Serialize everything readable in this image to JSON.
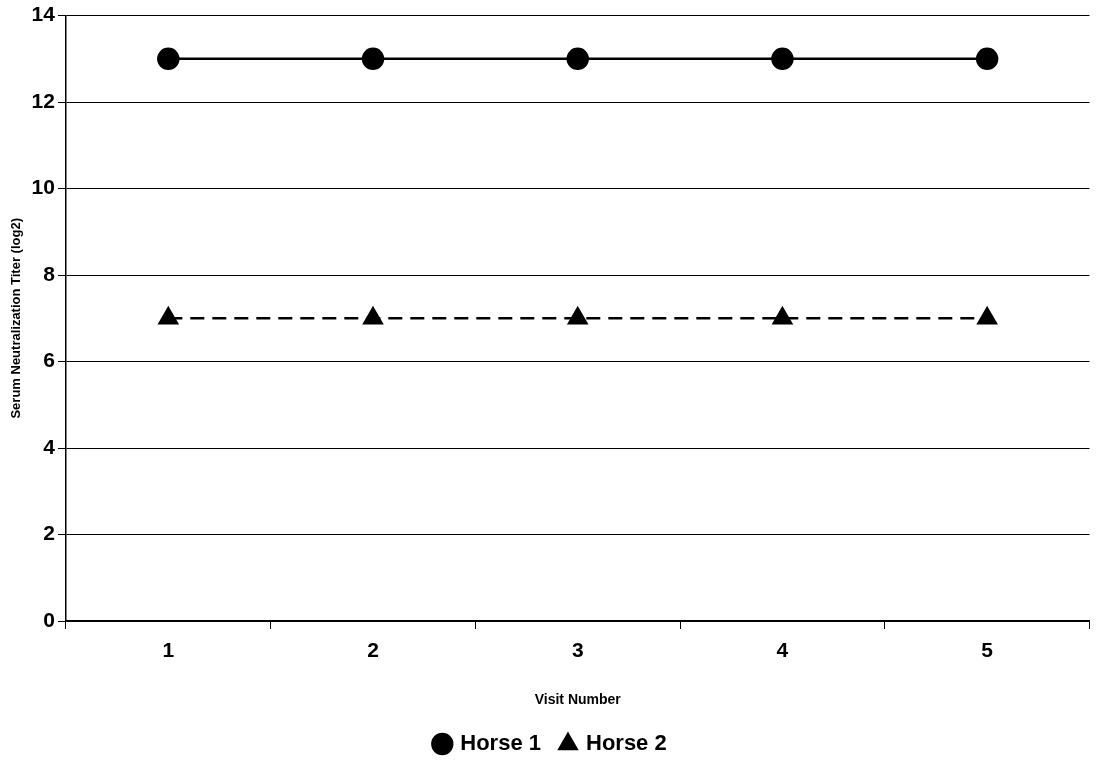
{
  "chart_data": {
    "type": "line",
    "xlabel": "Visit Number",
    "ylabel": "Serum Neutralization Titer (log2)",
    "categories": [
      "1",
      "2",
      "3",
      "4",
      "5"
    ],
    "series": [
      {
        "name": "Horse 1",
        "color": "#000000",
        "values": [
          13,
          13,
          13,
          13,
          13
        ],
        "marker": "circle",
        "line_style": "solid"
      },
      {
        "name": "Horse 2",
        "color": "#000000",
        "values": [
          7,
          7,
          7,
          7,
          7
        ],
        "marker": "triangle",
        "line_style": "dashed"
      }
    ],
    "ylim": [
      0,
      14
    ],
    "yticks": [
      0,
      2,
      4,
      6,
      8,
      10,
      12,
      14
    ],
    "grid": "y",
    "legend": "bottom"
  }
}
